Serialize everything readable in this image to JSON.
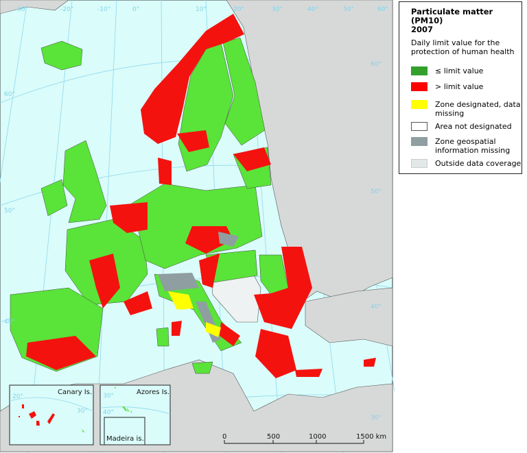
{
  "legend": {
    "title_line1": "Particulate matter (PM10)",
    "title_line2": "2007",
    "subtitle_line1": "Daily limit value for the",
    "subtitle_line2": "protection of human health",
    "items": [
      {
        "label1": "≤ limit value",
        "label2": "",
        "color": "#33a02c"
      },
      {
        "label1": "> limit value",
        "label2": "",
        "color": "#ff0000"
      },
      {
        "label1": "Zone designated, data",
        "label2": "missing",
        "color": "#ffff00"
      },
      {
        "label1": "Area not designated",
        "label2": "",
        "color": "#ffffff"
      },
      {
        "label1": "Zone geospatial",
        "label2": "information missing",
        "color": "#8f9ea1"
      },
      {
        "label1": "Outside data coverage",
        "label2": "",
        "color": "#e2e8e8"
      }
    ]
  },
  "map": {
    "colors": {
      "sea": "#dafcfa",
      "land_outside": "#d7d9d9",
      "green": "#5ae339",
      "red": "#f4120f",
      "yellow": "#ffff00",
      "grey_zone": "#8f9ea1"
    },
    "graticule_top": [
      "-30°",
      "-20°",
      "-10°",
      "0°",
      "10°",
      "20°",
      "30°",
      "40°",
      "50°",
      "60°"
    ],
    "graticule_right": [
      "60°",
      "50°",
      "40°",
      "30°"
    ],
    "graticule_left": [
      "60°",
      "50°",
      "40°"
    ],
    "insets": {
      "canary": {
        "label": "Canary Is.",
        "lat_labels": [
          "20°",
          "30°"
        ]
      },
      "azores": {
        "label": "Azores Is.",
        "lat_labels": [
          "30°",
          "40°"
        ]
      },
      "madeira": {
        "label": "Madeira is."
      }
    },
    "scale_bar": {
      "ticks": [
        "0",
        "500",
        "1000",
        "1500 km"
      ]
    }
  }
}
